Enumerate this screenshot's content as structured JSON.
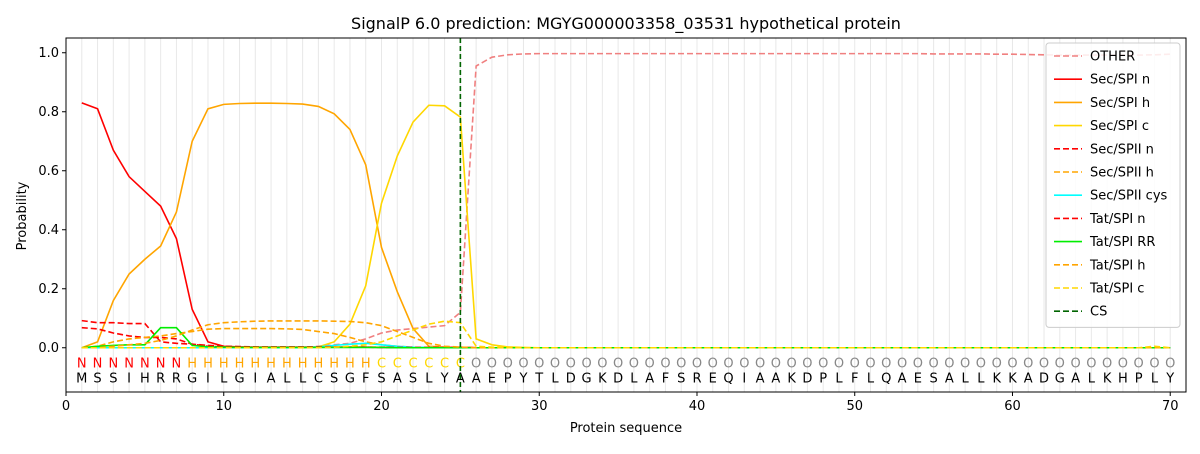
{
  "chart_data": {
    "type": "line",
    "title": "SignalP 6.0 prediction: MGYG000003358_03531 hypothetical protein",
    "xlabel": "Protein sequence",
    "ylabel": "Probability",
    "xlim": [
      0,
      71
    ],
    "ylim": [
      -0.15,
      1.05
    ],
    "x_ticks": [
      0,
      10,
      20,
      30,
      40,
      50,
      60,
      70
    ],
    "y_ticks": [
      0.0,
      0.2,
      0.4,
      0.6,
      0.8,
      1.0
    ],
    "y_tick_labels": [
      "0.0",
      "0.2",
      "0.4",
      "0.6",
      "0.8",
      "1.0"
    ],
    "grid": "vertical lines at each sequence position",
    "legend_position": "top-right",
    "sequence": [
      "M",
      "S",
      "S",
      "I",
      "H",
      "R",
      "R",
      "G",
      "I",
      "L",
      "G",
      "I",
      "A",
      "L",
      "L",
      "C",
      "S",
      "G",
      "F",
      "S",
      "A",
      "S",
      "L",
      "Y",
      "A",
      "A",
      "E",
      "P",
      "Y",
      "T",
      "L",
      "D",
      "G",
      "K",
      "D",
      "L",
      "A",
      "F",
      "S",
      "R",
      "E",
      "Q",
      "I",
      "A",
      "A",
      "K",
      "D",
      "P",
      "L",
      "F",
      "L",
      "Q",
      "A",
      "E",
      "S",
      "A",
      "L",
      "L",
      "K",
      "K",
      "A",
      "D",
      "G",
      "A",
      "L",
      "K",
      "H",
      "P",
      "L",
      "Y"
    ],
    "region_labels": [
      "N",
      "N",
      "N",
      "N",
      "N",
      "N",
      "N",
      "H",
      "H",
      "H",
      "H",
      "H",
      "H",
      "H",
      "H",
      "H",
      "H",
      "H",
      "H",
      "C",
      "C",
      "C",
      "C",
      "C",
      "C",
      "O",
      "O",
      "O",
      "O",
      "O",
      "O",
      "O",
      "O",
      "O",
      "O",
      "O",
      "O",
      "O",
      "O",
      "O",
      "O",
      "O",
      "O",
      "O",
      "O",
      "O",
      "O",
      "O",
      "O",
      "O",
      "O",
      "O",
      "O",
      "O",
      "O",
      "O",
      "O",
      "O",
      "O",
      "O",
      "O",
      "O",
      "O",
      "O",
      "O",
      "O",
      "O",
      "O",
      "O",
      "O"
    ],
    "region_colors": {
      "N": "#ff0000",
      "H": "#ffa500",
      "C": "#ffd700",
      "O": "#888888"
    },
    "cleavage_site": 25,
    "series": [
      {
        "name": "OTHER",
        "color": "#f08080",
        "dash": "dashed",
        "values": [
          0.0,
          0.0,
          0.0,
          0.0,
          0.0,
          0.0,
          0.0,
          0.0,
          0.0,
          0.0,
          0.0,
          0.0,
          0.0,
          0.0,
          0.0,
          0.005,
          0.01,
          0.015,
          0.03,
          0.05,
          0.06,
          0.065,
          0.07,
          0.075,
          0.12,
          0.955,
          0.985,
          0.993,
          0.996,
          0.997,
          0.997,
          0.997,
          0.997,
          0.997,
          0.997,
          0.997,
          0.997,
          0.997,
          0.997,
          0.997,
          0.997,
          0.997,
          0.997,
          0.997,
          0.997,
          0.997,
          0.997,
          0.997,
          0.997,
          0.997,
          0.997,
          0.997,
          0.997,
          0.997,
          0.996,
          0.996,
          0.996,
          0.996,
          0.995,
          0.995,
          0.994,
          0.993,
          0.992,
          0.992,
          0.992,
          0.992,
          0.992,
          0.992,
          0.993,
          0.995
        ]
      },
      {
        "name": "Sec/SPI n",
        "color": "#ff0000",
        "dash": "solid",
        "values": [
          0.83,
          0.81,
          0.67,
          0.58,
          0.53,
          0.48,
          0.37,
          0.13,
          0.02,
          0.005,
          0.003,
          0.002,
          0.002,
          0.002,
          0.002,
          0.002,
          0.002,
          0.002,
          0.002,
          0.001,
          0.001,
          0.001,
          0.001,
          0.001,
          0.001,
          0.0,
          0.0,
          0.0,
          0.0,
          0.0,
          0.0,
          0.0,
          0.0,
          0.0,
          0.0,
          0.0,
          0.0,
          0.0,
          0.0,
          0.0,
          0.0,
          0.0,
          0.0,
          0.0,
          0.0,
          0.0,
          0.0,
          0.0,
          0.0,
          0.0,
          0.0,
          0.0,
          0.0,
          0.0,
          0.0,
          0.0,
          0.0,
          0.0,
          0.0,
          0.0,
          0.0,
          0.0,
          0.0,
          0.0,
          0.0,
          0.0,
          0.0,
          0.0,
          0.0,
          0.0
        ]
      },
      {
        "name": "Sec/SPI h",
        "color": "#ffa500",
        "dash": "solid",
        "values": [
          0.0,
          0.02,
          0.16,
          0.25,
          0.3,
          0.345,
          0.46,
          0.7,
          0.81,
          0.825,
          0.828,
          0.829,
          0.829,
          0.828,
          0.826,
          0.818,
          0.793,
          0.74,
          0.62,
          0.34,
          0.19,
          0.065,
          0.005,
          0.002,
          0.001,
          0.0,
          0.0,
          0.0,
          0.0,
          0.0,
          0.0,
          0.0,
          0.0,
          0.0,
          0.0,
          0.0,
          0.0,
          0.0,
          0.0,
          0.0,
          0.0,
          0.0,
          0.0,
          0.0,
          0.0,
          0.0,
          0.0,
          0.0,
          0.0,
          0.0,
          0.0,
          0.0,
          0.0,
          0.0,
          0.0,
          0.0,
          0.0,
          0.0,
          0.0,
          0.0,
          0.0,
          0.0,
          0.0,
          0.0,
          0.0,
          0.0,
          0.0,
          0.0,
          0.0,
          0.0
        ]
      },
      {
        "name": "Sec/SPI c",
        "color": "#ffd700",
        "dash": "solid",
        "values": [
          0.0,
          0.0,
          0.0,
          0.0,
          0.0,
          0.0,
          0.0,
          0.0,
          0.0,
          0.0,
          0.0,
          0.0,
          0.0,
          0.0,
          0.0,
          0.003,
          0.02,
          0.08,
          0.21,
          0.49,
          0.65,
          0.765,
          0.822,
          0.82,
          0.782,
          0.03,
          0.01,
          0.003,
          0.001,
          0.0,
          0.0,
          0.0,
          0.0,
          0.0,
          0.0,
          0.0,
          0.0,
          0.0,
          0.0,
          0.0,
          0.0,
          0.0,
          0.0,
          0.0,
          0.0,
          0.0,
          0.0,
          0.0,
          0.0,
          0.0,
          0.0,
          0.0,
          0.0,
          0.0,
          0.0,
          0.0,
          0.0,
          0.0,
          0.0,
          0.0,
          0.0,
          0.0,
          0.0,
          0.0,
          0.0,
          0.0,
          0.0,
          0.0,
          0.0,
          0.0
        ]
      },
      {
        "name": "Sec/SPII n",
        "color": "#ff0000",
        "dash": "dashed",
        "values": [
          0.068,
          0.064,
          0.05,
          0.04,
          0.035,
          0.035,
          0.03,
          0.012,
          0.005,
          0.003,
          0.002,
          0.002,
          0.002,
          0.002,
          0.002,
          0.002,
          0.002,
          0.002,
          0.002,
          0.001,
          0.001,
          0.001,
          0.001,
          0.001,
          0.001,
          0.0,
          0.0,
          0.0,
          0.0,
          0.0,
          0.0,
          0.0,
          0.0,
          0.0,
          0.0,
          0.0,
          0.0,
          0.0,
          0.0,
          0.0,
          0.0,
          0.0,
          0.0,
          0.0,
          0.0,
          0.0,
          0.0,
          0.0,
          0.0,
          0.0,
          0.0,
          0.0,
          0.0,
          0.0,
          0.0,
          0.0,
          0.0,
          0.0,
          0.0,
          0.0,
          0.0,
          0.0,
          0.0,
          0.0,
          0.0,
          0.0,
          0.0,
          0.0,
          0.0,
          0.0
        ]
      },
      {
        "name": "Sec/SPII h",
        "color": "#ffa500",
        "dash": "dashed",
        "values": [
          0.0,
          0.005,
          0.02,
          0.03,
          0.035,
          0.04,
          0.048,
          0.055,
          0.063,
          0.065,
          0.065,
          0.065,
          0.065,
          0.064,
          0.062,
          0.055,
          0.048,
          0.035,
          0.02,
          0.01,
          0.005,
          0.002,
          0.001,
          0.0,
          0.0,
          0.0,
          0.0,
          0.0,
          0.0,
          0.0,
          0.0,
          0.0,
          0.0,
          0.0,
          0.0,
          0.0,
          0.0,
          0.0,
          0.0,
          0.0,
          0.0,
          0.0,
          0.0,
          0.0,
          0.0,
          0.0,
          0.0,
          0.0,
          0.0,
          0.0,
          0.0,
          0.0,
          0.0,
          0.0,
          0.0,
          0.0,
          0.0,
          0.0,
          0.0,
          0.0,
          0.0,
          0.0,
          0.0,
          0.0,
          0.0,
          0.0,
          0.0,
          0.0,
          0.0,
          0.0
        ]
      },
      {
        "name": "Sec/SPII cys",
        "color": "#00ffff",
        "dash": "solid",
        "values": [
          0.0,
          0.0,
          0.0,
          0.0,
          0.0,
          0.0,
          0.0,
          0.0,
          0.0,
          0.0,
          0.0,
          0.0,
          0.0,
          0.0,
          0.0,
          0.003,
          0.008,
          0.012,
          0.015,
          0.01,
          0.005,
          0.002,
          0.001,
          0.0,
          0.0,
          0.0,
          0.0,
          0.0,
          0.0,
          0.0,
          0.0,
          0.0,
          0.0,
          0.0,
          0.0,
          0.0,
          0.0,
          0.0,
          0.0,
          0.0,
          0.0,
          0.0,
          0.0,
          0.0,
          0.0,
          0.0,
          0.0,
          0.0,
          0.0,
          0.0,
          0.0,
          0.0,
          0.0,
          0.0,
          0.0,
          0.0,
          0.0,
          0.0,
          0.0,
          0.0,
          0.0,
          0.0,
          0.0,
          0.0,
          0.0,
          0.0,
          0.0,
          0.0,
          0.0,
          0.0
        ]
      },
      {
        "name": "Tat/SPI n",
        "color": "#ff0000",
        "dash": "dashed",
        "values": [
          0.092,
          0.085,
          0.085,
          0.082,
          0.082,
          0.02,
          0.015,
          0.012,
          0.008,
          0.005,
          0.004,
          0.003,
          0.003,
          0.003,
          0.003,
          0.003,
          0.003,
          0.003,
          0.002,
          0.002,
          0.001,
          0.001,
          0.001,
          0.001,
          0.001,
          0.0,
          0.0,
          0.0,
          0.0,
          0.0,
          0.0,
          0.0,
          0.0,
          0.0,
          0.0,
          0.0,
          0.0,
          0.0,
          0.0,
          0.0,
          0.0,
          0.0,
          0.0,
          0.0,
          0.0,
          0.0,
          0.0,
          0.0,
          0.0,
          0.0,
          0.0,
          0.0,
          0.0,
          0.0,
          0.0,
          0.0,
          0.0,
          0.0,
          0.0,
          0.0,
          0.0,
          0.0,
          0.0,
          0.0,
          0.0,
          0.0,
          0.0,
          0.0,
          0.0,
          0.0
        ]
      },
      {
        "name": "Tat/SPI RR",
        "color": "#00ee00",
        "dash": "solid",
        "values": [
          0.0,
          0.005,
          0.008,
          0.01,
          0.01,
          0.068,
          0.068,
          0.008,
          0.003,
          0.002,
          0.001,
          0.001,
          0.001,
          0.001,
          0.001,
          0.001,
          0.001,
          0.001,
          0.001,
          0.001,
          0.0,
          0.0,
          0.0,
          0.0,
          0.0,
          0.0,
          0.0,
          0.0,
          0.0,
          0.0,
          0.0,
          0.0,
          0.0,
          0.0,
          0.0,
          0.0,
          0.0,
          0.0,
          0.0,
          0.0,
          0.0,
          0.0,
          0.0,
          0.0,
          0.0,
          0.0,
          0.0,
          0.0,
          0.0,
          0.0,
          0.0,
          0.0,
          0.0,
          0.0,
          0.0,
          0.0,
          0.0,
          0.0,
          0.0,
          0.0,
          0.0,
          0.0,
          0.0,
          0.0,
          0.0,
          0.0,
          0.0,
          0.0,
          0.0,
          0.0
        ]
      },
      {
        "name": "Tat/SPI h",
        "color": "#ffa500",
        "dash": "dashed",
        "values": [
          0.0,
          0.0,
          0.005,
          0.01,
          0.015,
          0.025,
          0.04,
          0.06,
          0.078,
          0.085,
          0.088,
          0.09,
          0.091,
          0.091,
          0.091,
          0.091,
          0.09,
          0.089,
          0.085,
          0.075,
          0.055,
          0.035,
          0.015,
          0.005,
          0.002,
          0.0,
          0.0,
          0.0,
          0.0,
          0.0,
          0.0,
          0.0,
          0.0,
          0.0,
          0.0,
          0.0,
          0.0,
          0.0,
          0.0,
          0.0,
          0.0,
          0.0,
          0.0,
          0.0,
          0.0,
          0.0,
          0.0,
          0.0,
          0.0,
          0.0,
          0.0,
          0.0,
          0.0,
          0.0,
          0.0,
          0.0,
          0.0,
          0.0,
          0.0,
          0.0,
          0.0,
          0.0,
          0.0,
          0.0,
          0.0,
          0.0,
          0.0,
          0.0,
          0.0,
          0.0
        ]
      },
      {
        "name": "Tat/SPI c",
        "color": "#ffd700",
        "dash": "dashed",
        "values": [
          0.0,
          0.0,
          0.0,
          0.0,
          0.0,
          0.0,
          0.0,
          0.0,
          0.0,
          0.0,
          0.0,
          0.0,
          0.0,
          0.0,
          0.0,
          0.0,
          0.002,
          0.005,
          0.01,
          0.02,
          0.04,
          0.06,
          0.08,
          0.09,
          0.085,
          0.005,
          0.002,
          0.0,
          0.0,
          0.0,
          0.0,
          0.0,
          0.0,
          0.0,
          0.0,
          0.0,
          0.0,
          0.0,
          0.0,
          0.0,
          0.0,
          0.0,
          0.0,
          0.0,
          0.0,
          0.0,
          0.0,
          0.0,
          0.0,
          0.0,
          0.0,
          0.0,
          0.0,
          0.0,
          0.0,
          0.0,
          0.0,
          0.0,
          0.0,
          0.0,
          0.0,
          0.0,
          0.0,
          0.0,
          0.0,
          0.0,
          0.0,
          0.0,
          0.005,
          0.0
        ]
      }
    ],
    "legend": [
      {
        "label": "OTHER",
        "color": "#f08080",
        "dash": "dashed"
      },
      {
        "label": "Sec/SPI n",
        "color": "#ff0000",
        "dash": "solid"
      },
      {
        "label": "Sec/SPI h",
        "color": "#ffa500",
        "dash": "solid"
      },
      {
        "label": "Sec/SPI c",
        "color": "#ffd700",
        "dash": "solid"
      },
      {
        "label": "Sec/SPII n",
        "color": "#ff0000",
        "dash": "dashed"
      },
      {
        "label": "Sec/SPII h",
        "color": "#ffa500",
        "dash": "dashed"
      },
      {
        "label": "Sec/SPII cys",
        "color": "#00ffff",
        "dash": "solid"
      },
      {
        "label": "Tat/SPI n",
        "color": "#ff0000",
        "dash": "dashed"
      },
      {
        "label": "Tat/SPI RR",
        "color": "#00ee00",
        "dash": "solid"
      },
      {
        "label": "Tat/SPI h",
        "color": "#ffa500",
        "dash": "dashed"
      },
      {
        "label": "Tat/SPI c",
        "color": "#ffd700",
        "dash": "dashed"
      },
      {
        "label": "CS",
        "color": "#006400",
        "dash": "dashed"
      }
    ]
  }
}
